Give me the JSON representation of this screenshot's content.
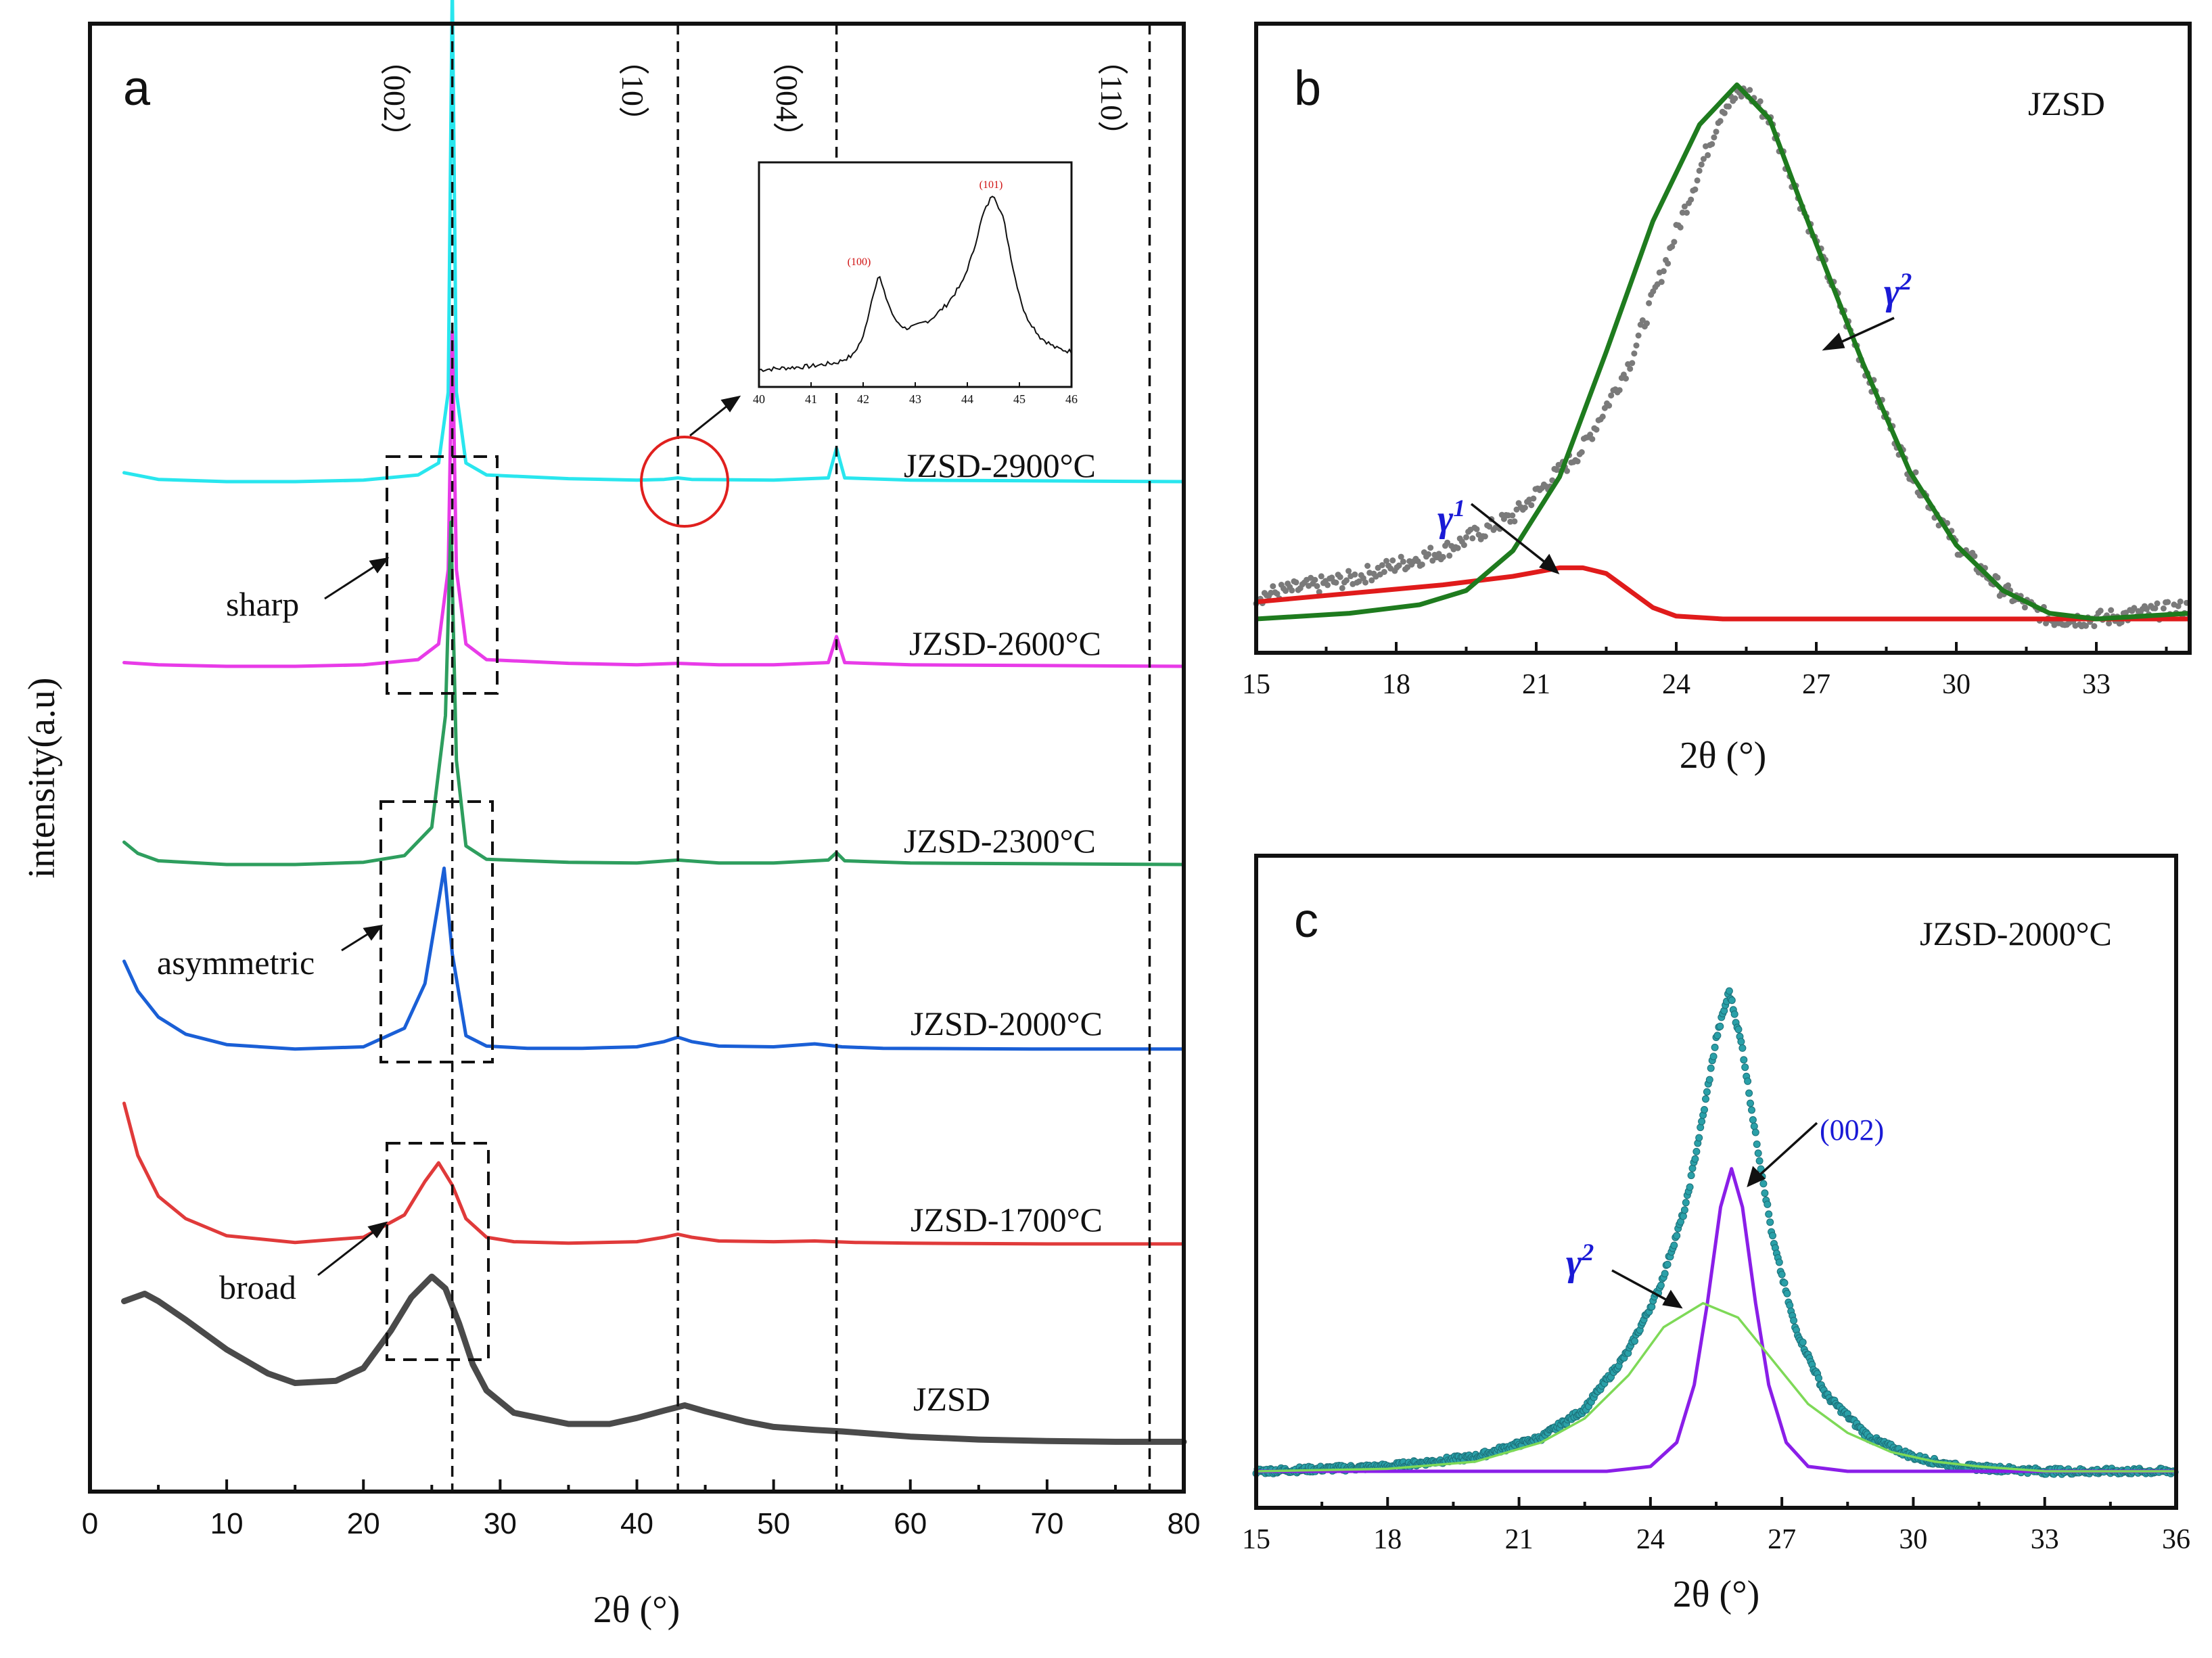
{
  "chart_data": [
    {
      "panel": "a",
      "type": "line",
      "xlabel": "2θ (°)",
      "ylabel": "intensity(a.u)",
      "xlim": [
        0,
        80
      ],
      "xticks": [
        0,
        10,
        20,
        30,
        40,
        50,
        60,
        70,
        80
      ],
      "reference_lines": [
        {
          "x": 26.5,
          "label": "（002）"
        },
        {
          "x": 43.0,
          "label": "（10）"
        },
        {
          "x": 54.6,
          "label": "（004）"
        },
        {
          "x": 77.5,
          "label": "（110）"
        }
      ],
      "annotations": [
        "sharp",
        "asymmetric",
        "broad"
      ],
      "series": [
        {
          "name": "JZSD-2900°C",
          "color": "#29e6ee",
          "offset": 5,
          "x": [
            2.5,
            5,
            10,
            15,
            20,
            24,
            25.5,
            26.2,
            26.5,
            26.8,
            27.5,
            29,
            35,
            40,
            42,
            43,
            44,
            50,
            54,
            54.6,
            55.2,
            60,
            70,
            80
          ],
          "y": [
            0.12,
            0.03,
            0,
            0,
            0.02,
            0.09,
            0.25,
            1.2,
            6.7,
            1.2,
            0.25,
            0.09,
            0.04,
            0.02,
            0.03,
            0.05,
            0.03,
            0.02,
            0.05,
            0.45,
            0.05,
            0.02,
            0.01,
            0
          ]
        },
        {
          "name": "JZSD-2600°C",
          "color": "#e83be8",
          "offset": 4,
          "x": [
            2.5,
            5,
            10,
            15,
            20,
            24,
            25.5,
            26.2,
            26.5,
            26.8,
            27.5,
            29,
            35,
            40,
            43,
            46,
            50,
            54,
            54.6,
            55.2,
            60,
            70,
            80
          ],
          "y": [
            0.05,
            0.02,
            0,
            0,
            0.02,
            0.09,
            0.3,
            1.3,
            4.5,
            1.3,
            0.3,
            0.09,
            0.04,
            0.02,
            0.04,
            0.02,
            0.02,
            0.05,
            0.4,
            0.05,
            0.02,
            0.01,
            0
          ]
        },
        {
          "name": "JZSD-2300°C",
          "color": "#2e9e5e",
          "offset": 3,
          "x": [
            2.5,
            3.5,
            5,
            10,
            15,
            20,
            23,
            25,
            26,
            26.4,
            26.8,
            27.5,
            29,
            35,
            40,
            43,
            46,
            50,
            54,
            54.6,
            55.2,
            60,
            70,
            80
          ],
          "y": [
            0.3,
            0.15,
            0.05,
            0,
            0,
            0.03,
            0.12,
            0.5,
            2.0,
            4.6,
            1.4,
            0.25,
            0.07,
            0.03,
            0.02,
            0.06,
            0.02,
            0.02,
            0.06,
            0.16,
            0.05,
            0.02,
            0.01,
            0
          ]
        },
        {
          "name": "JZSD-2000°C",
          "color": "#1a5fd6",
          "offset": 2,
          "x": [
            2.5,
            3.5,
            5,
            7,
            10,
            15,
            20,
            23,
            24.5,
            25.5,
            25.9,
            26.5,
            27.5,
            29,
            32,
            36,
            40,
            42,
            43,
            44,
            46,
            50,
            53,
            55,
            58,
            70,
            80
          ],
          "y": [
            1.2,
            0.8,
            0.45,
            0.22,
            0.08,
            0.02,
            0.05,
            0.3,
            0.9,
            2.0,
            2.45,
            1.3,
            0.2,
            0.06,
            0.03,
            0.03,
            0.05,
            0.12,
            0.18,
            0.12,
            0.06,
            0.05,
            0.09,
            0.05,
            0.03,
            0.02,
            0.02
          ]
        },
        {
          "name": "JZSD-1700°C",
          "color": "#e03a3a",
          "offset": 1,
          "x": [
            2.5,
            3.5,
            5,
            7,
            10,
            15,
            20,
            23,
            24.5,
            25.5,
            26.5,
            27.5,
            29,
            31,
            35,
            40,
            42,
            43,
            44,
            46,
            50,
            53,
            56,
            60,
            70,
            80
          ],
          "y": [
            1.9,
            1.2,
            0.65,
            0.35,
            0.12,
            0.03,
            0.1,
            0.4,
            0.85,
            1.1,
            0.8,
            0.35,
            0.1,
            0.04,
            0.02,
            0.04,
            0.1,
            0.14,
            0.1,
            0.05,
            0.04,
            0.05,
            0.03,
            0.02,
            0.01,
            0.01
          ]
        },
        {
          "name": "JZSD",
          "color": "#4a4a4a",
          "offset": 0,
          "x": [
            2.5,
            4,
            5,
            7,
            10,
            13,
            15,
            18,
            20,
            22,
            23.5,
            25,
            26,
            27,
            28,
            29,
            31,
            35,
            38,
            40,
            42,
            43.5,
            45,
            48,
            50,
            53,
            55,
            60,
            65,
            70,
            75,
            80
          ],
          "y": [
            1.95,
            2.05,
            1.95,
            1.7,
            1.3,
            0.98,
            0.85,
            0.88,
            1.05,
            1.55,
            2.0,
            2.28,
            2.12,
            1.65,
            1.1,
            0.75,
            0.45,
            0.3,
            0.3,
            0.38,
            0.48,
            0.55,
            0.47,
            0.33,
            0.26,
            0.22,
            0.2,
            0.13,
            0.09,
            0.07,
            0.06,
            0.06
          ]
        }
      ],
      "inset": {
        "xlim": [
          40,
          46
        ],
        "xticks": [
          40,
          41,
          42,
          43,
          44,
          45,
          46
        ],
        "peaks": [
          {
            "x": 42.3,
            "label": "(100)"
          },
          {
            "x": 44.5,
            "label": "(101)"
          }
        ],
        "x": [
          40,
          40.5,
          41,
          41.5,
          41.8,
          42.0,
          42.2,
          42.3,
          42.4,
          42.6,
          42.8,
          43.0,
          43.3,
          43.6,
          43.9,
          44.1,
          44.3,
          44.5,
          44.7,
          44.9,
          45.1,
          45.4,
          45.7,
          46
        ],
        "y": [
          0.02,
          0.03,
          0.04,
          0.06,
          0.1,
          0.2,
          0.45,
          0.55,
          0.45,
          0.3,
          0.25,
          0.26,
          0.3,
          0.38,
          0.5,
          0.66,
          0.88,
          1.0,
          0.85,
          0.55,
          0.33,
          0.2,
          0.14,
          0.12
        ]
      }
    },
    {
      "panel": "b",
      "type": "line",
      "title": "JZSD",
      "xlabel": "2θ (°)",
      "xlim": [
        15,
        35
      ],
      "xticks": [
        15,
        18,
        21,
        24,
        27,
        30,
        33
      ],
      "annotations": [
        "γ¹",
        "γ²"
      ],
      "scatter": {
        "name": "data",
        "color": "#7a7a7a",
        "x": [
          15,
          17,
          19,
          20.5,
          22,
          23,
          24,
          25,
          25.5,
          26,
          27,
          28,
          29,
          30,
          31,
          32,
          33,
          35
        ],
        "y": [
          0.04,
          0.07,
          0.12,
          0.18,
          0.3,
          0.45,
          0.68,
          0.9,
          0.93,
          0.88,
          0.66,
          0.45,
          0.26,
          0.13,
          0.05,
          0.0,
          0.0,
          0.02
        ]
      },
      "series": [
        {
          "name": "γ¹",
          "color": "#e01b1b",
          "x": [
            15,
            17,
            19,
            20.5,
            21.5,
            22,
            22.5,
            23,
            23.5,
            24,
            25,
            27,
            30,
            33,
            35
          ],
          "y": [
            0.03,
            0.045,
            0.06,
            0.075,
            0.09,
            0.09,
            0.08,
            0.05,
            0.02,
            0.005,
            0,
            0,
            0,
            0,
            0
          ]
        },
        {
          "name": "γ²",
          "color": "#1e7b1e",
          "x": [
            15,
            17,
            18.5,
            19.5,
            20.5,
            21.5,
            22.5,
            23.5,
            24.5,
            25.3,
            26,
            27,
            28,
            29,
            30,
            31,
            32,
            33,
            35
          ],
          "y": [
            0,
            0.01,
            0.025,
            0.05,
            0.12,
            0.25,
            0.47,
            0.7,
            0.87,
            0.94,
            0.88,
            0.66,
            0.45,
            0.26,
            0.13,
            0.05,
            0.01,
            0,
            0.01
          ]
        }
      ]
    },
    {
      "panel": "c",
      "type": "line",
      "title": "JZSD-2000°C",
      "xlabel": "2θ (°)",
      "xlim": [
        15,
        36
      ],
      "xticks": [
        15,
        18,
        21,
        24,
        27,
        30,
        33,
        36
      ],
      "annotations": [
        "γ²",
        "(002)"
      ],
      "scatter": {
        "name": "data",
        "color": "#2aa0a8",
        "x": [
          15,
          18,
          20,
          21.5,
          22.5,
          23.5,
          24.2,
          24.8,
          25.2,
          25.5,
          25.8,
          26.1,
          26.4,
          26.8,
          27.3,
          28,
          29,
          30,
          31,
          33,
          36
        ],
        "y": [
          0.0,
          0.01,
          0.03,
          0.07,
          0.13,
          0.25,
          0.38,
          0.55,
          0.74,
          0.9,
          1.0,
          0.88,
          0.7,
          0.48,
          0.3,
          0.16,
          0.07,
          0.03,
          0.01,
          0,
          0
        ]
      },
      "series": [
        {
          "name": "(002)",
          "color": "#8a1ee8",
          "x": [
            15,
            23,
            24,
            24.6,
            25,
            25.3,
            25.6,
            25.85,
            26.1,
            26.4,
            26.7,
            27.1,
            27.6,
            28.5,
            36
          ],
          "y": [
            0,
            0,
            0.01,
            0.06,
            0.18,
            0.35,
            0.55,
            0.63,
            0.55,
            0.35,
            0.18,
            0.06,
            0.01,
            0,
            0
          ]
        },
        {
          "name": "γ²",
          "color": "#7ed957",
          "x": [
            15,
            18,
            20,
            21.5,
            22.5,
            23.5,
            24.3,
            25.2,
            26,
            26.8,
            27.6,
            28.5,
            29.5,
            30.5,
            31.5,
            33,
            36
          ],
          "y": [
            0,
            0.005,
            0.02,
            0.06,
            0.11,
            0.2,
            0.3,
            0.35,
            0.32,
            0.23,
            0.14,
            0.08,
            0.04,
            0.02,
            0.01,
            0,
            0
          ]
        }
      ]
    }
  ]
}
